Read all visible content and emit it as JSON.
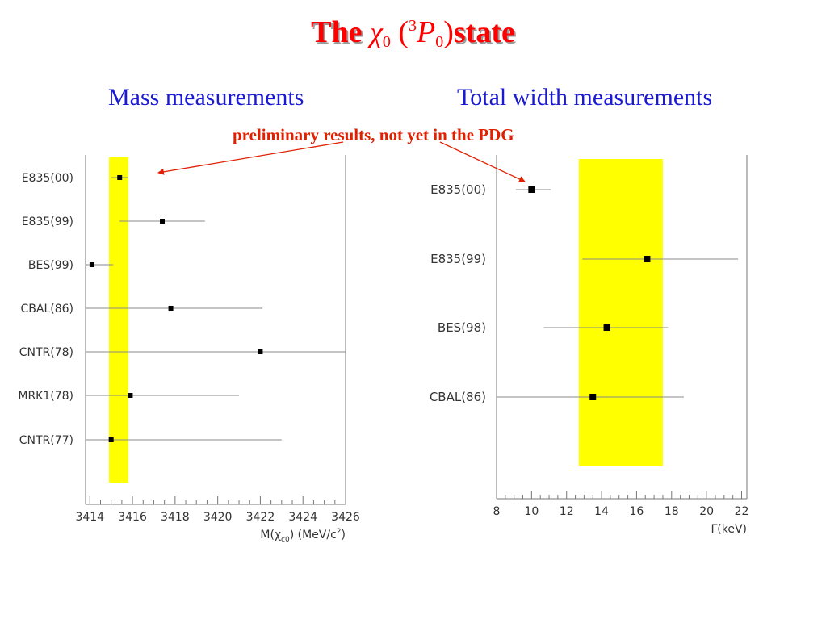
{
  "title": {
    "word1": "The",
    "chi": "χ",
    "chi_sub": "0",
    "open_paren": "(",
    "sup": "3",
    "P": "P",
    "P_sub": "0",
    "close_paren": ")",
    "word2": "state"
  },
  "headings": {
    "mass": "Mass measurements",
    "width": "Total width measurements"
  },
  "note": "preliminary results, not yet in the PDG",
  "colors": {
    "title": "#ff0000",
    "headings": "#1a1ad2",
    "note": "#e02000",
    "band": "#ffff00"
  },
  "chart_data": [
    {
      "type": "scatter",
      "categories": [
        "E835(00)",
        "E835(99)",
        "BES(99)",
        "CBAL(86)",
        "CNTR(78)",
        "MRK1(78)",
        "CNTR(77)"
      ],
      "values": [
        3415.4,
        3417.4,
        3414.1,
        3417.8,
        3422.0,
        3415.9,
        3415.0
      ],
      "error_low": [
        3415.0,
        3415.4,
        3412.6,
        3412.7,
        3410.5,
        3410.5,
        3410.5
      ],
      "error_high": [
        3415.8,
        3419.4,
        3415.1,
        3422.1,
        3426.0,
        3421.0,
        3423.0
      ],
      "band": [
        3414.9,
        3415.8
      ],
      "xlim": [
        3413.8,
        3426
      ],
      "xticks": [
        "3414",
        "3416",
        "3418",
        "3420",
        "3422",
        "3424",
        "3426"
      ],
      "xlabel": "M(χ",
      "xlabel_sub": "c0",
      "xlabel_unit": ")  (MeV/c",
      "xlabel_unit_sup": "2",
      "xlabel_end": ")"
    },
    {
      "type": "scatter",
      "categories": [
        "E835(00)",
        "E835(99)",
        "BES(98)",
        "CBAL(86)"
      ],
      "values": [
        10.0,
        16.6,
        14.3,
        13.5
      ],
      "error_low": [
        9.1,
        12.9,
        10.7,
        8.0
      ],
      "error_high": [
        11.1,
        21.8,
        17.8,
        18.7
      ],
      "band": [
        12.7,
        17.5
      ],
      "xlim": [
        8,
        22.3
      ],
      "xticks": [
        "8",
        "10",
        "12",
        "14",
        "16",
        "18",
        "20",
        "22"
      ],
      "xlabel": "Γ(keV)"
    }
  ]
}
